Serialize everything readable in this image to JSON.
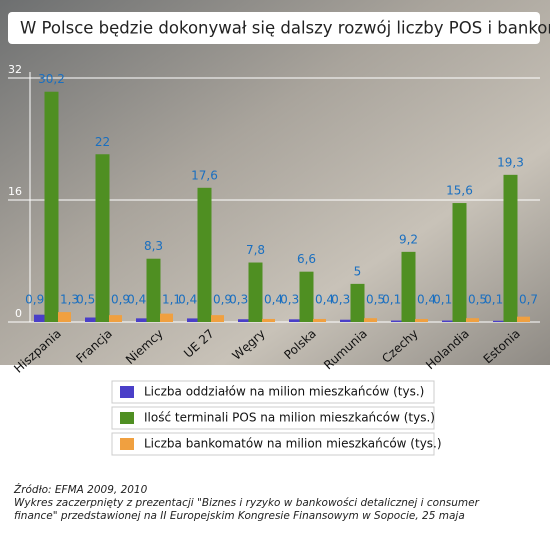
{
  "chart_data": {
    "type": "bar",
    "title": "W Polsce będzie dokonywał się dalszy rozwój liczby POS i bankomatów",
    "categories": [
      "Hiszpania",
      "Francja",
      "Niemcy",
      "UE 27",
      "Węgry",
      "Polska",
      "Rumunia",
      "Czechy",
      "Holandia",
      "Estonia"
    ],
    "series": [
      {
        "name": "Liczba oddziałów na milion mieszkańców (tys.)",
        "color": "#4a3fc8",
        "values": [
          0.96,
          0.59,
          0.48,
          0.47,
          0.36,
          0.35,
          0.3,
          0.19,
          0.19,
          0.16
        ],
        "value_labels": [
          "0,96",
          "0,59",
          "0,48",
          "0,47",
          "0,36",
          "0,35",
          "0,30",
          "0,19",
          "0,19",
          "0,16"
        ]
      },
      {
        "name": "Ilość terminali POS na milion mieszkańców (tys.)",
        "color": "#4f8f22",
        "values": [
          30.2,
          22,
          8.3,
          17.6,
          7.8,
          6.6,
          5,
          9.2,
          15.6,
          19.3
        ],
        "value_labels": [
          "30,2",
          "22",
          "8,3",
          "17,6",
          "7,8",
          "6,6",
          "5",
          "9,2",
          "15,6",
          "19,3"
        ]
      },
      {
        "name": "Liczba bankomatów na milion mieszkańców (tys.)",
        "color": "#f0a040",
        "values": [
          1.3,
          0.9,
          1.1,
          0.9,
          0.4,
          0.4,
          0.5,
          0.4,
          0.5,
          0.7
        ],
        "value_labels": [
          "1,3",
          "0,9",
          "1,1",
          "0,9",
          "0,4",
          "0,4",
          "0,5",
          "0,4",
          "0,5",
          "0,7"
        ]
      }
    ],
    "ylim": [
      0,
      32
    ],
    "yticks": [
      0,
      16,
      32
    ],
    "grid": true,
    "source": "Źródło: EFMA 2009, 2010",
    "note": "Wykres zaczerpnięty z prezentacji \"Biznes i ryzyko w bankowości detalicznej i consumer finance\" przedstawionej na II Europejskim Kongresie Finansowym w Sopocie, 25 maja"
  }
}
